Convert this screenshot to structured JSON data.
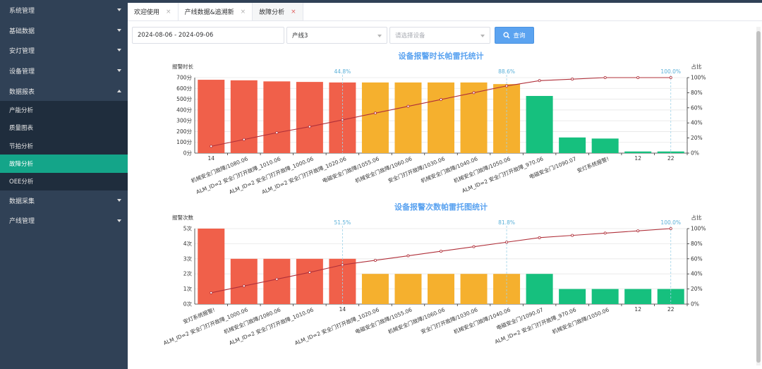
{
  "sidebar": {
    "items": [
      {
        "label": "系统管理"
      },
      {
        "label": "基础数据"
      },
      {
        "label": "安灯管理"
      },
      {
        "label": "设备管理"
      },
      {
        "label": "数据报表"
      },
      {
        "label": "数据采集"
      },
      {
        "label": "产线管理"
      }
    ],
    "sub_items": [
      {
        "label": "产能分析"
      },
      {
        "label": "质量图表"
      },
      {
        "label": "节拍分析"
      },
      {
        "label": "故障分析"
      },
      {
        "label": "OEE分析"
      }
    ]
  },
  "tabs": [
    {
      "label": "欢迎使用",
      "close": "×"
    },
    {
      "label": "产线数据&追溯新",
      "close": "×"
    },
    {
      "label": "故障分析",
      "close": "×"
    }
  ],
  "filters": {
    "date_range": "2024-08-06 - 2024-09-06",
    "line": "产线3",
    "device_placeholder": "请选择设备",
    "query_label": "查询"
  },
  "colors": {
    "red": "#f0604a",
    "orange": "#f5b02e",
    "green": "#16c07e",
    "line": "#b0303a",
    "accent": "#5ba3f0"
  },
  "chart_data": [
    {
      "type": "bar",
      "title": "设备报警时长帕雷托统计",
      "ylabel": "报警时长",
      "y2label": "占比",
      "ylim": [
        0,
        700
      ],
      "yticks": [
        "0分",
        "100分",
        "200分",
        "300分",
        "400分",
        "500分",
        "600分",
        "700分"
      ],
      "y2ticks": [
        "0%",
        "20%",
        "40%",
        "60%",
        "80%",
        "100%"
      ],
      "categories": [
        "14",
        "机械安全门故障/1080.06",
        "ALM_ID=2 安全门打开故障_1010.06",
        "ALM_ID=2 安全门打开故障_1000.06",
        "ALM_ID=2 安全门打开故障_1020.06",
        "电磁安全门故障/1055.06",
        "机械安全门故障/1060.06",
        "安全门打开故障/1030.06",
        "机械安全门故障/1040.06",
        "机械安全门故障/1050.06",
        "ALM_ID=2 安全门打开故障_970.06",
        "电磁安全门/1090.07",
        "安灯系统报警!",
        "12",
        "22"
      ],
      "values": [
        680,
        675,
        665,
        660,
        655,
        655,
        655,
        655,
        655,
        640,
        530,
        145,
        135,
        15,
        15
      ],
      "cumulative_pct": [
        9,
        18,
        27,
        35,
        44,
        53,
        62,
        71,
        80,
        89,
        96,
        98,
        100,
        100,
        100
      ],
      "bar_groups": [
        "red",
        "red",
        "red",
        "red",
        "red",
        "orange",
        "orange",
        "orange",
        "orange",
        "orange",
        "green",
        "green",
        "green",
        "green",
        "green"
      ],
      "markers": [
        {
          "index": 4,
          "label": "44.8%"
        },
        {
          "index": 9,
          "label": "88.6%"
        },
        {
          "index": 14,
          "label": "100.0%"
        }
      ]
    },
    {
      "type": "bar",
      "title": "设备报警次数帕雷托图统计",
      "ylabel": "报警次数",
      "y2label": "占比",
      "ylim": [
        0,
        5
      ],
      "yticks": [
        "0次",
        "1次",
        "2次",
        "3次",
        "4次",
        "5次"
      ],
      "y2ticks": [
        "0%",
        "20%",
        "40%",
        "60%",
        "80%",
        "100%"
      ],
      "categories": [
        "安灯系统报警!",
        "ALM_ID=2 安全门打开故障_1000.06",
        "机械安全门故障/1080.06",
        "ALM_ID=2 安全门打开故障_1010.06",
        "14",
        "ALM_ID=2 安全门打开故障_1020.06",
        "电磁安全门故障/1055.06",
        "机械安全门故障/1060.06",
        "安全门打开故障/1030.06",
        "机械安全门故障/1040.06",
        "电磁安全门/1090.07",
        "ALM_ID=2 安全门打开故障_970.06",
        "机械安全门故障/1050.06",
        "12",
        "22"
      ],
      "values": [
        5,
        3,
        3,
        3,
        3,
        2,
        2,
        2,
        2,
        2,
        2,
        1,
        1,
        1,
        1
      ],
      "cumulative_pct": [
        15,
        24,
        33,
        42,
        52,
        58,
        64,
        70,
        76,
        82,
        88,
        91,
        94,
        97,
        100
      ],
      "bar_groups": [
        "red",
        "red",
        "red",
        "red",
        "red",
        "orange",
        "orange",
        "orange",
        "orange",
        "orange",
        "green",
        "green",
        "green",
        "green",
        "green"
      ],
      "markers": [
        {
          "index": 4,
          "label": "51.5%"
        },
        {
          "index": 9,
          "label": "81.8%"
        },
        {
          "index": 14,
          "label": "100.0%"
        }
      ]
    }
  ]
}
